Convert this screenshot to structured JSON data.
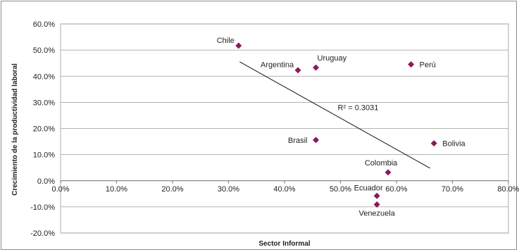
{
  "chart_data": {
    "type": "scatter",
    "title": "",
    "xlabel": "Sector Informal",
    "ylabel": "Crecimiento de la productividad laboral",
    "xlim": [
      0,
      0.8
    ],
    "ylim": [
      -0.2,
      0.6
    ],
    "x_ticks": [
      "0.0%",
      "10.0%",
      "20.0%",
      "30.0%",
      "40.0%",
      "50.0%",
      "60.0%",
      "70.0%",
      "80.0%"
    ],
    "y_ticks": [
      "60.0%",
      "50.0%",
      "40.0%",
      "30.0%",
      "20.0%",
      "10.0%",
      "0.0%",
      "-10.0%",
      "-20.0%"
    ],
    "grid": true,
    "marker_color": "#8b1a5a",
    "points": [
      {
        "label": "Chile",
        "x": 0.318,
        "y": 0.517
      },
      {
        "label": "Argentina",
        "x": 0.424,
        "y": 0.423
      },
      {
        "label": "Uruguay",
        "x": 0.456,
        "y": 0.433
      },
      {
        "label": "Perú",
        "x": 0.626,
        "y": 0.445
      },
      {
        "label": "Brasil",
        "x": 0.456,
        "y": 0.156
      },
      {
        "label": "Bolivia",
        "x": 0.667,
        "y": 0.143
      },
      {
        "label": "Colombia",
        "x": 0.585,
        "y": 0.032
      },
      {
        "label": "Ecuador",
        "x": 0.565,
        "y": -0.058
      },
      {
        "label": "Venezuela",
        "x": 0.565,
        "y": -0.091
      }
    ],
    "trendline": {
      "x": [
        0.32,
        0.66
      ],
      "y": [
        0.455,
        0.048
      ],
      "r2_label": "R² = 0.3031"
    }
  }
}
